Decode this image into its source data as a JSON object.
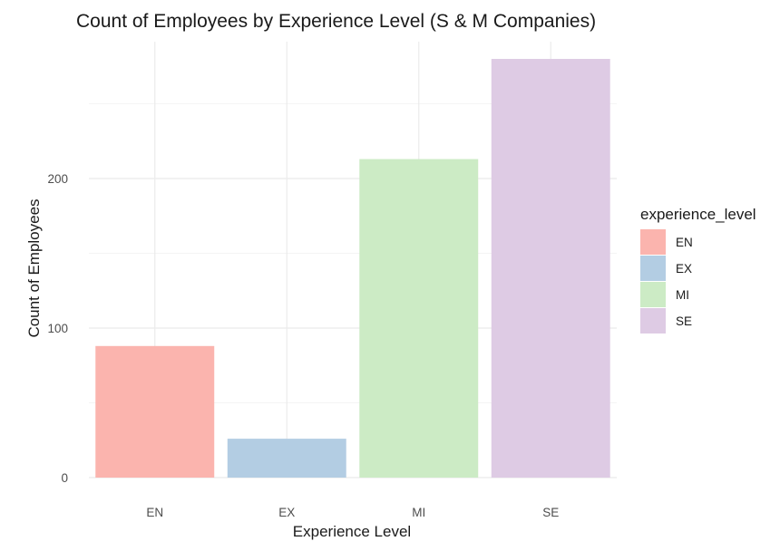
{
  "chart_data": {
    "type": "bar",
    "title": "Count of Employees by Experience Level (S & M Companies)",
    "xlabel": "Experience Level",
    "ylabel": "Count of Employees",
    "categories": [
      "EN",
      "EX",
      "MI",
      "SE"
    ],
    "values": [
      88,
      26,
      213,
      280
    ],
    "colors": [
      "#FBB4AE",
      "#B3CDE3",
      "#CCEBC5",
      "#DECBE4"
    ],
    "ylim": [
      0,
      280
    ],
    "yticks": [
      0,
      100,
      200
    ],
    "grid": true,
    "legend": {
      "title": "experience_level",
      "position": "right",
      "items": [
        "EN",
        "EX",
        "MI",
        "SE"
      ]
    }
  }
}
